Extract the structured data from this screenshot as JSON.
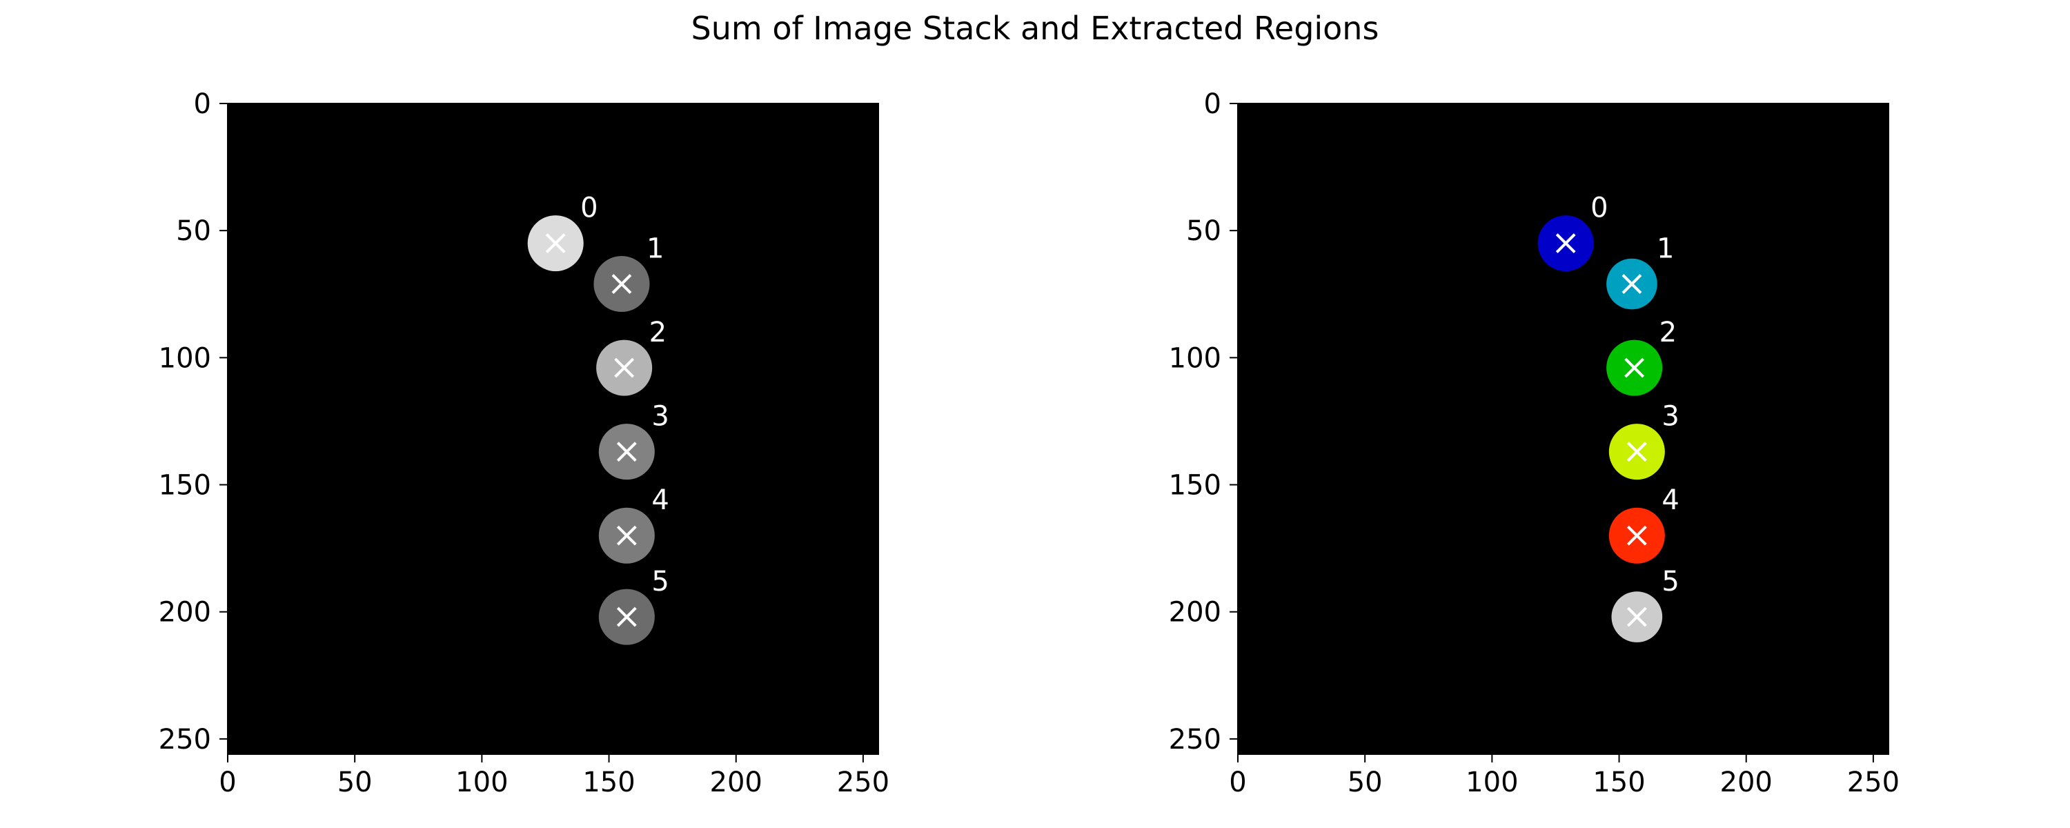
{
  "figure": {
    "title": "Sum of Image Stack and Extracted Regions"
  },
  "chart_data": [
    {
      "type": "scatter",
      "panel": "sum-of-image-stack",
      "title": "",
      "xlabel": "",
      "ylabel": "",
      "xlim": [
        0,
        256
      ],
      "ylim": [
        256,
        0
      ],
      "xticks": [
        0,
        50,
        100,
        150,
        200,
        250
      ],
      "yticks": [
        0,
        50,
        100,
        150,
        200,
        250
      ],
      "background": "#000000",
      "colormap": "gray",
      "grid": false,
      "regions": [
        {
          "label": "0",
          "x": 129,
          "y": 55,
          "radius": 11,
          "fill": "#dcdcdc"
        },
        {
          "label": "1",
          "x": 155,
          "y": 71,
          "radius": 11,
          "fill": "#6e6e6e"
        },
        {
          "label": "2",
          "x": 156,
          "y": 104,
          "radius": 11,
          "fill": "#b4b4b4"
        },
        {
          "label": "3",
          "x": 157,
          "y": 137,
          "radius": 11,
          "fill": "#828282"
        },
        {
          "label": "4",
          "x": 157,
          "y": 170,
          "radius": 11,
          "fill": "#7c7c7c"
        },
        {
          "label": "5",
          "x": 157,
          "y": 202,
          "radius": 11,
          "fill": "#6c6c6c"
        }
      ],
      "marker": "x",
      "marker_color": "#ffffff"
    },
    {
      "type": "scatter",
      "panel": "extracted-regions",
      "title": "",
      "xlabel": "",
      "ylabel": "",
      "xlim": [
        0,
        256
      ],
      "ylim": [
        256,
        0
      ],
      "xticks": [
        0,
        50,
        100,
        150,
        200,
        250
      ],
      "yticks": [
        0,
        50,
        100,
        150,
        200,
        250
      ],
      "background": "#000000",
      "colormap": "nipy_spectral",
      "grid": false,
      "regions": [
        {
          "label": "0",
          "x": 129,
          "y": 55,
          "radius": 11,
          "fill": "#0000c8"
        },
        {
          "label": "1",
          "x": 155,
          "y": 71,
          "radius": 10,
          "fill": "#00a0c0"
        },
        {
          "label": "2",
          "x": 156,
          "y": 104,
          "radius": 11,
          "fill": "#00c000"
        },
        {
          "label": "3",
          "x": 157,
          "y": 137,
          "radius": 11,
          "fill": "#c8f000"
        },
        {
          "label": "4",
          "x": 157,
          "y": 170,
          "radius": 11,
          "fill": "#ff2a00"
        },
        {
          "label": "5",
          "x": 157,
          "y": 202,
          "radius": 10,
          "fill": "#cccccc"
        }
      ],
      "marker": "x",
      "marker_color": "#ffffff"
    }
  ]
}
